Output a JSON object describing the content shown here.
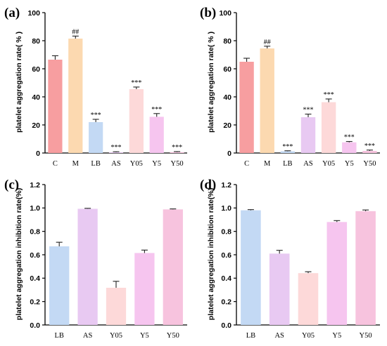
{
  "chart_data": [
    {
      "panel": "(a)",
      "type": "bar",
      "ylabel": "platelet aggregation rate( % )",
      "ylim": [
        0,
        100
      ],
      "yticks": [
        "0",
        "20",
        "40",
        "60",
        "80",
        "100"
      ],
      "categories": [
        "C",
        "M",
        "LB",
        "AS",
        "Y05",
        "Y5",
        "Y50"
      ],
      "values": [
        66.5,
        81.5,
        22.0,
        0.5,
        45.5,
        25.8,
        0.6
      ],
      "errors": [
        2.8,
        1.8,
        2.0,
        0.4,
        1.5,
        2.3,
        0.4
      ],
      "annotations": [
        "",
        "##",
        "***",
        "***",
        "***",
        "***",
        "***"
      ],
      "colors": [
        "#f79ea0",
        "#fcd9b0",
        "#c3d9f4",
        "#e8c9f2",
        "#fdd9d9",
        "#f6c5ef",
        "#f7c3de"
      ],
      "grid": false
    },
    {
      "panel": "(b)",
      "type": "bar",
      "ylabel": "platelet aggregation rate( % )",
      "ylim": [
        0,
        100
      ],
      "yticks": [
        "0",
        "20",
        "40",
        "60",
        "80",
        "100"
      ],
      "categories": [
        "C",
        "M",
        "LB",
        "AS",
        "Y05",
        "Y5",
        "Y50"
      ],
      "values": [
        65.0,
        74.5,
        1.2,
        25.5,
        36.2,
        7.6,
        1.5
      ],
      "errors": [
        2.5,
        1.6,
        0.4,
        2.2,
        2.3,
        0.6,
        0.6
      ],
      "annotations": [
        "",
        "##",
        "***",
        "***",
        "***",
        "***",
        "***"
      ],
      "colors": [
        "#f79ea0",
        "#fcd9b0",
        "#c3d9f4",
        "#e8c9f2",
        "#fdd9d9",
        "#f6c5ef",
        "#f7c3de"
      ],
      "grid": false
    },
    {
      "panel": "(c)",
      "type": "bar",
      "ylabel": "platelet aggregation inhibition rate(%)",
      "ylim": [
        0,
        1.2
      ],
      "yticks": [
        "0.0",
        "0.2",
        "0.4",
        "0.6",
        "0.8",
        "1.0",
        "1.2"
      ],
      "categories": [
        "LB",
        "AS",
        "Y05",
        "Y5",
        "Y50"
      ],
      "values": [
        0.672,
        0.993,
        0.318,
        0.615,
        0.988
      ],
      "errors": [
        0.035,
        0.004,
        0.055,
        0.025,
        0.004
      ],
      "annotations": [
        "",
        "",
        "",
        "",
        ""
      ],
      "colors": [
        "#c3d9f4",
        "#e8c9f2",
        "#fdd9d9",
        "#f6c5ef",
        "#f7c3de"
      ],
      "grid": false
    },
    {
      "panel": "(d)",
      "type": "bar",
      "ylabel": "platelet aggregation inhibition rate(%)",
      "ylim": [
        0,
        1.2
      ],
      "yticks": [
        "0.0",
        "0.2",
        "0.4",
        "0.6",
        "0.8",
        "1.0",
        "1.2"
      ],
      "categories": [
        "LB",
        "AS",
        "Y05",
        "Y5",
        "Y50"
      ],
      "values": [
        0.98,
        0.61,
        0.443,
        0.88,
        0.973
      ],
      "errors": [
        0.006,
        0.028,
        0.012,
        0.012,
        0.01
      ],
      "annotations": [
        "",
        "",
        "",
        "",
        ""
      ],
      "colors": [
        "#c3d9f4",
        "#e8c9f2",
        "#fdd9d9",
        "#f6c5ef",
        "#f7c3de"
      ],
      "grid": false
    }
  ]
}
